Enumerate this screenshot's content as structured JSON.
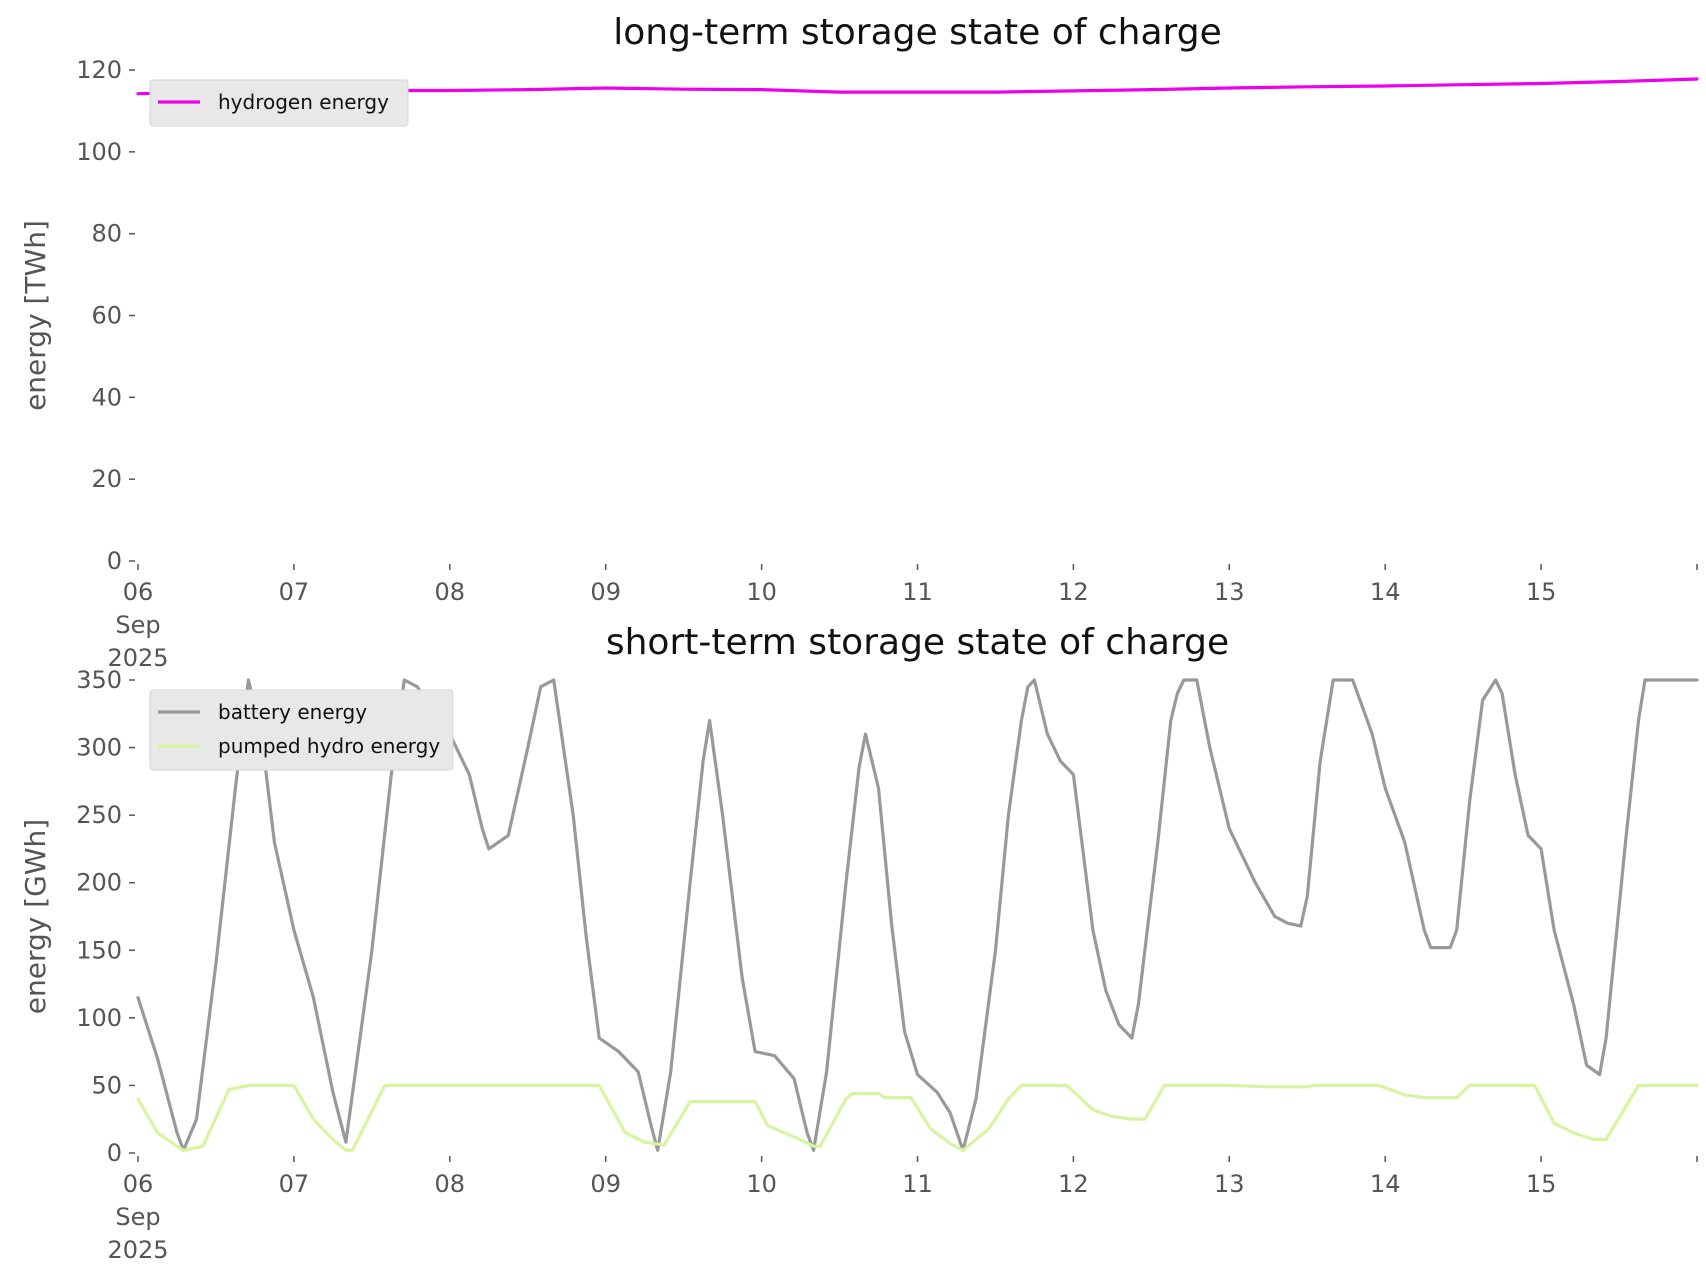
{
  "chart_data": [
    {
      "type": "line",
      "title": "long-term storage state of charge",
      "xlabel": "",
      "ylabel": "energy [TWh]",
      "ylim": [
        0,
        120
      ],
      "yticks": [
        0,
        20,
        40,
        60,
        80,
        100,
        120
      ],
      "xlim": [
        "2025-09-06",
        "2025-09-16"
      ],
      "xticks": [
        {
          "value": "2025-09-06",
          "lines": [
            "06",
            "Sep",
            "2025"
          ]
        },
        {
          "value": "2025-09-07",
          "lines": [
            "07"
          ]
        },
        {
          "value": "2025-09-08",
          "lines": [
            "08"
          ]
        },
        {
          "value": "2025-09-09",
          "lines": [
            "09"
          ]
        },
        {
          "value": "2025-09-10",
          "lines": [
            "10"
          ]
        },
        {
          "value": "2025-09-11",
          "lines": [
            "11"
          ]
        },
        {
          "value": "2025-09-12",
          "lines": [
            "12"
          ]
        },
        {
          "value": "2025-09-13",
          "lines": [
            "13"
          ]
        },
        {
          "value": "2025-09-14",
          "lines": [
            "14"
          ]
        },
        {
          "value": "2025-09-15",
          "lines": [
            "15"
          ]
        },
        {
          "value": "2025-09-16",
          "lines": [
            ""
          ]
        }
      ],
      "grid": false,
      "legend": "top-left",
      "series": [
        {
          "name": "hydrogen energy",
          "color": "#ee00ee",
          "points": [
            [
              "2025-09-06 00:00",
              114.2
            ],
            [
              "2025-09-06 12:00",
              114.6
            ],
            [
              "2025-09-07 00:00",
              114.9
            ],
            [
              "2025-09-07 12:00",
              115.0
            ],
            [
              "2025-09-08 00:00",
              115.0
            ],
            [
              "2025-09-08 12:00",
              115.2
            ],
            [
              "2025-09-09 00:00",
              115.6
            ],
            [
              "2025-09-09 12:00",
              115.3
            ],
            [
              "2025-09-10 00:00",
              115.2
            ],
            [
              "2025-09-10 12:00",
              114.6
            ],
            [
              "2025-09-11 00:00",
              114.6
            ],
            [
              "2025-09-11 12:00",
              114.6
            ],
            [
              "2025-09-12 00:00",
              114.9
            ],
            [
              "2025-09-12 12:00",
              115.2
            ],
            [
              "2025-09-13 00:00",
              115.6
            ],
            [
              "2025-09-13 12:00",
              115.9
            ],
            [
              "2025-09-14 00:00",
              116.1
            ],
            [
              "2025-09-14 12:00",
              116.4
            ],
            [
              "2025-09-15 00:00",
              116.7
            ],
            [
              "2025-09-15 12:00",
              117.2
            ],
            [
              "2025-09-16 00:00",
              117.8
            ]
          ]
        }
      ]
    },
    {
      "type": "line",
      "title": "short-term storage state of charge",
      "xlabel": "",
      "ylabel": "energy [GWh]",
      "ylim": [
        0,
        350
      ],
      "yticks": [
        0,
        50,
        100,
        150,
        200,
        250,
        300,
        350
      ],
      "xlim": [
        "2025-09-06",
        "2025-09-16"
      ],
      "xticks": [
        {
          "value": "2025-09-06",
          "lines": [
            "06",
            "Sep",
            "2025"
          ]
        },
        {
          "value": "2025-09-07",
          "lines": [
            "07"
          ]
        },
        {
          "value": "2025-09-08",
          "lines": [
            "08"
          ]
        },
        {
          "value": "2025-09-09",
          "lines": [
            "09"
          ]
        },
        {
          "value": "2025-09-10",
          "lines": [
            "10"
          ]
        },
        {
          "value": "2025-09-11",
          "lines": [
            "11"
          ]
        },
        {
          "value": "2025-09-12",
          "lines": [
            "12"
          ]
        },
        {
          "value": "2025-09-13",
          "lines": [
            "13"
          ]
        },
        {
          "value": "2025-09-14",
          "lines": [
            "14"
          ]
        },
        {
          "value": "2025-09-15",
          "lines": [
            "15"
          ]
        },
        {
          "value": "2025-09-16",
          "lines": [
            ""
          ]
        }
      ],
      "grid": false,
      "legend": "top-left",
      "series": [
        {
          "name": "battery energy",
          "color": "#999999",
          "points": [
            [
              "2025-09-06 00:00",
              115
            ],
            [
              "2025-09-06 03:00",
              70
            ],
            [
              "2025-09-06 06:00",
              15
            ],
            [
              "2025-09-06 07:00",
              2
            ],
            [
              "2025-09-06 09:00",
              25
            ],
            [
              "2025-09-06 12:00",
              140
            ],
            [
              "2025-09-06 15:00",
              270
            ],
            [
              "2025-09-06 17:00",
              350
            ],
            [
              "2025-09-06 19:00",
              310
            ],
            [
              "2025-09-06 21:00",
              230
            ],
            [
              "2025-09-07 00:00",
              165
            ],
            [
              "2025-09-07 03:00",
              115
            ],
            [
              "2025-09-07 06:00",
              45
            ],
            [
              "2025-09-07 08:00",
              8
            ],
            [
              "2025-09-07 12:00",
              150
            ],
            [
              "2025-09-07 15:00",
              280
            ],
            [
              "2025-09-07 17:00",
              350
            ],
            [
              "2025-09-07 19:00",
              345
            ],
            [
              "2025-09-07 21:00",
              330
            ],
            [
              "2025-09-08 00:00",
              310
            ],
            [
              "2025-09-08 03:00",
              280
            ],
            [
              "2025-09-08 05:00",
              240
            ],
            [
              "2025-09-08 06:00",
              225
            ],
            [
              "2025-09-08 09:00",
              235
            ],
            [
              "2025-09-08 12:00",
              300
            ],
            [
              "2025-09-08 14:00",
              345
            ],
            [
              "2025-09-08 16:00",
              350
            ],
            [
              "2025-09-08 19:00",
              250
            ],
            [
              "2025-09-08 21:00",
              160
            ],
            [
              "2025-09-08 23:00",
              85
            ],
            [
              "2025-09-09 02:00",
              75
            ],
            [
              "2025-09-09 05:00",
              60
            ],
            [
              "2025-09-09 07:00",
              20
            ],
            [
              "2025-09-09 08:00",
              2
            ],
            [
              "2025-09-09 10:00",
              60
            ],
            [
              "2025-09-09 13:00",
              200
            ],
            [
              "2025-09-09 15:00",
              290
            ],
            [
              "2025-09-09 16:00",
              320
            ],
            [
              "2025-09-09 18:00",
              250
            ],
            [
              "2025-09-09 21:00",
              130
            ],
            [
              "2025-09-09 23:00",
              75
            ],
            [
              "2025-09-10 02:00",
              72
            ],
            [
              "2025-09-10 05:00",
              55
            ],
            [
              "2025-09-10 07:00",
              15
            ],
            [
              "2025-09-10 08:00",
              2
            ],
            [
              "2025-09-10 10:00",
              60
            ],
            [
              "2025-09-10 13:00",
              200
            ],
            [
              "2025-09-10 15:00",
              285
            ],
            [
              "2025-09-10 16:00",
              310
            ],
            [
              "2025-09-10 18:00",
              270
            ],
            [
              "2025-09-10 20:00",
              170
            ],
            [
              "2025-09-10 22:00",
              90
            ],
            [
              "2025-09-11 00:00",
              58
            ],
            [
              "2025-09-11 03:00",
              45
            ],
            [
              "2025-09-11 05:00",
              30
            ],
            [
              "2025-09-11 07:00",
              2
            ],
            [
              "2025-09-11 09:00",
              40
            ],
            [
              "2025-09-11 12:00",
              150
            ],
            [
              "2025-09-11 14:00",
              250
            ],
            [
              "2025-09-11 16:00",
              320
            ],
            [
              "2025-09-11 17:00",
              345
            ],
            [
              "2025-09-11 18:00",
              350
            ],
            [
              "2025-09-11 20:00",
              310
            ],
            [
              "2025-09-11 22:00",
              290
            ],
            [
              "2025-09-12 00:00",
              280
            ],
            [
              "2025-09-12 03:00",
              165
            ],
            [
              "2025-09-12 05:00",
              120
            ],
            [
              "2025-09-12 07:00",
              95
            ],
            [
              "2025-09-12 09:00",
              85
            ],
            [
              "2025-09-12 10:00",
              110
            ],
            [
              "2025-09-12 13:00",
              230
            ],
            [
              "2025-09-12 15:00",
              320
            ],
            [
              "2025-09-12 16:00",
              340
            ],
            [
              "2025-09-12 17:00",
              350
            ],
            [
              "2025-09-12 19:00",
              350
            ],
            [
              "2025-09-12 21:00",
              300
            ],
            [
              "2025-09-13 00:00",
              240
            ],
            [
              "2025-09-13 04:00",
              200
            ],
            [
              "2025-09-13 07:00",
              175
            ],
            [
              "2025-09-13 09:00",
              170
            ],
            [
              "2025-09-13 11:00",
              168
            ],
            [
              "2025-09-13 12:00",
              190
            ],
            [
              "2025-09-13 14:00",
              290
            ],
            [
              "2025-09-13 16:00",
              350
            ],
            [
              "2025-09-13 19:00",
              350
            ],
            [
              "2025-09-13 22:00",
              310
            ],
            [
              "2025-09-14 00:00",
              270
            ],
            [
              "2025-09-14 03:00",
              230
            ],
            [
              "2025-09-14 06:00",
              165
            ],
            [
              "2025-09-14 07:00",
              152
            ],
            [
              "2025-09-14 10:00",
              152
            ],
            [
              "2025-09-14 11:00",
              165
            ],
            [
              "2025-09-14 13:00",
              260
            ],
            [
              "2025-09-14 15:00",
              335
            ],
            [
              "2025-09-14 17:00",
              350
            ],
            [
              "2025-09-14 18:00",
              340
            ],
            [
              "2025-09-14 20:00",
              280
            ],
            [
              "2025-09-14 22:00",
              235
            ],
            [
              "2025-09-15 00:00",
              225
            ],
            [
              "2025-09-15 02:00",
              165
            ],
            [
              "2025-09-15 05:00",
              110
            ],
            [
              "2025-09-15 07:00",
              65
            ],
            [
              "2025-09-15 09:00",
              58
            ],
            [
              "2025-09-15 10:00",
              85
            ],
            [
              "2025-09-15 13:00",
              230
            ],
            [
              "2025-09-15 15:00",
              320
            ],
            [
              "2025-09-15 16:00",
              350
            ],
            [
              "2025-09-16 00:00",
              350
            ]
          ]
        },
        {
          "name": "pumped hydro energy",
          "color": "#d6f5a0",
          "points": [
            [
              "2025-09-06 00:00",
              40
            ],
            [
              "2025-09-06 03:00",
              15
            ],
            [
              "2025-09-06 06:00",
              5
            ],
            [
              "2025-09-06 07:00",
              2
            ],
            [
              "2025-09-06 10:00",
              5
            ],
            [
              "2025-09-06 14:00",
              47
            ],
            [
              "2025-09-06 17:00",
              50
            ],
            [
              "2025-09-07 00:00",
              50
            ],
            [
              "2025-09-07 03:00",
              25
            ],
            [
              "2025-09-07 06:00",
              10
            ],
            [
              "2025-09-07 08:00",
              2
            ],
            [
              "2025-09-07 09:00",
              2
            ],
            [
              "2025-09-07 14:00",
              50
            ],
            [
              "2025-09-08 23:00",
              50
            ],
            [
              "2025-09-09 03:00",
              15
            ],
            [
              "2025-09-09 06:00",
              8
            ],
            [
              "2025-09-09 09:00",
              6
            ],
            [
              "2025-09-09 13:00",
              38
            ],
            [
              "2025-09-09 23:00",
              38
            ],
            [
              "2025-09-10 01:00",
              20
            ],
            [
              "2025-09-10 05:00",
              12
            ],
            [
              "2025-09-10 08:00",
              5
            ],
            [
              "2025-09-10 09:00",
              5
            ],
            [
              "2025-09-10 13:00",
              40
            ],
            [
              "2025-09-10 14:00",
              44
            ],
            [
              "2025-09-10 18:00",
              44
            ],
            [
              "2025-09-10 19:00",
              41
            ],
            [
              "2025-09-10 23:00",
              41
            ],
            [
              "2025-09-11 02:00",
              18
            ],
            [
              "2025-09-11 05:00",
              7
            ],
            [
              "2025-09-11 07:00",
              2
            ],
            [
              "2025-09-11 11:00",
              18
            ],
            [
              "2025-09-11 14:00",
              40
            ],
            [
              "2025-09-11 16:00",
              50
            ],
            [
              "2025-09-11 23:00",
              50
            ],
            [
              "2025-09-12 03:00",
              32
            ],
            [
              "2025-09-12 06:00",
              27
            ],
            [
              "2025-09-12 09:00",
              25
            ],
            [
              "2025-09-12 11:00",
              25
            ],
            [
              "2025-09-12 14:00",
              50
            ],
            [
              "2025-09-13 00:00",
              50
            ],
            [
              "2025-09-13 06:00",
              49
            ],
            [
              "2025-09-13 12:00",
              49
            ],
            [
              "2025-09-13 13:00",
              50
            ],
            [
              "2025-09-13 23:00",
              50
            ],
            [
              "2025-09-14 03:00",
              43
            ],
            [
              "2025-09-14 06:00",
              41
            ],
            [
              "2025-09-14 11:00",
              41
            ],
            [
              "2025-09-14 13:00",
              50
            ],
            [
              "2025-09-14 23:00",
              50
            ],
            [
              "2025-09-15 02:00",
              22
            ],
            [
              "2025-09-15 05:00",
              15
            ],
            [
              "2025-09-15 08:00",
              10
            ],
            [
              "2025-09-15 10:00",
              10
            ],
            [
              "2025-09-15 15:00",
              50
            ],
            [
              "2025-09-16 00:00",
              50
            ]
          ]
        }
      ]
    }
  ]
}
